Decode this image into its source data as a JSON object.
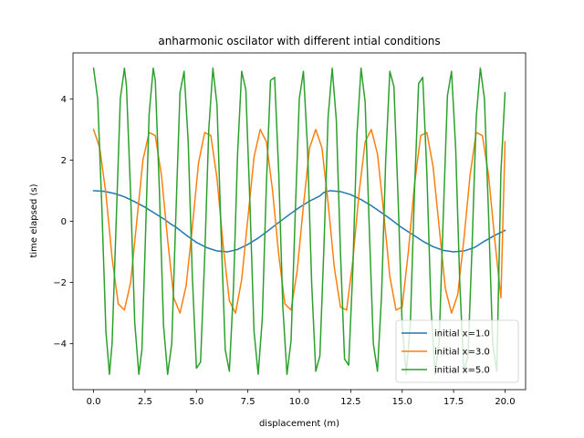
{
  "chart_data": {
    "type": "line",
    "title": "anharmonic oscilator with different intial conditions",
    "xlabel": "displacement (m)",
    "ylabel": "time elapsed (s)",
    "xlim": [
      -1.0,
      21.0
    ],
    "ylim": [
      -5.5,
      5.5
    ],
    "xticks": [
      0.0,
      2.5,
      5.0,
      7.5,
      10.0,
      12.5,
      15.0,
      17.5,
      20.0
    ],
    "xtick_labels": [
      "0.0",
      "2.5",
      "5.0",
      "7.5",
      "10.0",
      "12.5",
      "15.0",
      "17.5",
      "20.0"
    ],
    "yticks": [
      -4,
      -2,
      0,
      2,
      4
    ],
    "ytick_labels": [
      "−4",
      "−2",
      "0",
      "2",
      "4"
    ],
    "grid": false,
    "legend_position": "lower-right",
    "series": [
      {
        "name": "initial x=1.0",
        "color": "#1f77b4",
        "amplitude": 1.0,
        "x": [
          0.0,
          0.5,
          1.0,
          1.5,
          2.0,
          2.5,
          3.0,
          3.5,
          3.73,
          4.0,
          4.5,
          5.0,
          5.5,
          6.0,
          6.5,
          7.0,
          7.46,
          8.0,
          8.5,
          9.0,
          9.5,
          10.0,
          10.5,
          11.0,
          11.19,
          11.5,
          12.0,
          12.5,
          13.0,
          13.5,
          14.0,
          14.5,
          14.92,
          15.5,
          16.0,
          16.5,
          17.0,
          17.5,
          18.0,
          18.5,
          18.65,
          19.0,
          19.5,
          20.0
        ],
        "y": [
          1.0,
          0.98,
          0.91,
          0.8,
          0.64,
          0.46,
          0.25,
          0.04,
          -0.08,
          -0.19,
          -0.45,
          -0.69,
          -0.86,
          -0.97,
          -1.0,
          -0.92,
          -0.77,
          -0.55,
          -0.3,
          -0.04,
          0.21,
          0.45,
          0.66,
          0.83,
          0.94,
          1.0,
          0.97,
          0.87,
          0.71,
          0.51,
          0.28,
          0.04,
          -0.18,
          -0.43,
          -0.65,
          -0.83,
          -0.95,
          -1.0,
          -0.97,
          -0.86,
          -0.8,
          -0.65,
          -0.46,
          -0.3
        ]
      },
      {
        "name": "initial x=3.0",
        "color": "#ff7f0e",
        "amplitude": 3.0,
        "x": [
          0.0,
          0.3,
          0.6,
          0.9,
          1.2,
          1.5,
          1.8,
          2.1,
          2.4,
          2.7,
          3.0,
          3.3,
          3.6,
          3.9,
          4.2,
          4.5,
          4.8,
          5.1,
          5.4,
          5.7,
          6.0,
          6.3,
          6.6,
          6.9,
          7.2,
          7.5,
          7.8,
          8.1,
          8.4,
          8.7,
          9.0,
          9.3,
          9.6,
          9.9,
          10.2,
          10.5,
          10.8,
          11.1,
          11.4,
          11.7,
          12.0,
          12.3,
          12.6,
          12.9,
          13.2,
          13.5,
          13.8,
          14.1,
          14.4,
          14.7,
          15.0,
          15.3,
          15.6,
          15.9,
          16.2,
          16.5,
          16.8,
          17.1,
          17.4,
          17.7,
          18.0,
          18.3,
          18.6,
          18.9,
          19.2,
          19.5,
          19.8,
          20.0
        ],
        "y": [
          3.0,
          2.4,
          0.9,
          -1.2,
          -2.7,
          -2.9,
          -2.0,
          0.0,
          2.0,
          2.9,
          2.8,
          1.5,
          -0.6,
          -2.5,
          -3.0,
          -2.1,
          -0.2,
          1.9,
          2.9,
          2.8,
          1.4,
          -0.8,
          -2.6,
          -3.0,
          -1.9,
          0.1,
          2.1,
          3.0,
          2.6,
          1.0,
          -1.1,
          -2.7,
          -2.9,
          -1.6,
          0.5,
          2.4,
          3.0,
          2.4,
          0.6,
          -1.5,
          -2.8,
          -2.9,
          -1.3,
          0.9,
          2.6,
          3.0,
          2.2,
          0.3,
          -1.8,
          -2.9,
          -2.8,
          -1.0,
          1.2,
          2.8,
          2.9,
          1.8,
          -0.2,
          -2.2,
          -3.0,
          -2.4,
          -0.6,
          1.5,
          2.9,
          2.8,
          1.5,
          -0.6,
          -2.5,
          2.6
        ]
      },
      {
        "name": "initial x=5.0",
        "color": "#2ca02c",
        "amplitude": 5.0,
        "x": [
          0.0,
          0.2,
          0.4,
          0.6,
          0.77,
          0.9,
          1.1,
          1.3,
          1.5,
          1.6,
          1.8,
          2.0,
          2.2,
          2.35,
          2.5,
          2.7,
          2.9,
          3.0,
          3.2,
          3.4,
          3.6,
          3.8,
          4.0,
          4.2,
          4.4,
          4.6,
          4.8,
          5.0,
          5.2,
          5.4,
          5.6,
          5.8,
          6.0,
          6.2,
          6.4,
          6.6,
          6.8,
          7.0,
          7.2,
          7.4,
          7.6,
          7.8,
          8.0,
          8.2,
          8.4,
          8.6,
          8.8,
          9.0,
          9.2,
          9.4,
          9.6,
          9.8,
          10.0,
          10.2,
          10.4,
          10.6,
          10.8,
          11.0,
          11.2,
          11.4,
          11.6,
          11.8,
          12.0,
          12.2,
          12.4,
          12.6,
          12.8,
          13.0,
          13.2,
          13.4,
          13.6,
          13.8,
          14.0,
          14.2,
          14.4,
          14.6,
          14.8,
          15.0,
          15.2,
          15.4,
          15.6,
          15.8,
          16.0,
          16.2,
          16.4,
          16.6,
          16.8,
          17.0,
          17.2,
          17.4,
          17.6,
          17.8,
          18.0,
          18.2,
          18.4,
          18.6,
          18.8,
          19.0,
          19.2,
          19.4,
          19.6,
          19.8,
          20.0
        ],
        "y": [
          5.0,
          4.0,
          0.5,
          -3.6,
          -5.0,
          -4.0,
          0.0,
          4.0,
          5.0,
          4.4,
          0.9,
          -3.3,
          -5.0,
          -4.2,
          -1.0,
          3.5,
          5.0,
          4.6,
          1.0,
          -3.4,
          -5.0,
          -4.0,
          0.2,
          4.2,
          4.9,
          2.6,
          -1.8,
          -4.8,
          -4.6,
          -1.2,
          3.0,
          5.0,
          3.8,
          -0.4,
          -4.2,
          -4.9,
          -2.2,
          2.2,
          4.9,
          4.3,
          0.6,
          -3.6,
          -5.0,
          -3.2,
          1.2,
          4.6,
          4.7,
          1.6,
          -2.8,
          -5.0,
          -3.9,
          0.2,
          4.0,
          4.9,
          2.4,
          -2.0,
          -4.9,
          -4.4,
          -0.8,
          3.4,
          5.0,
          3.3,
          -1.0,
          -4.5,
          -4.7,
          -1.6,
          2.8,
          5.0,
          3.9,
          -0.2,
          -4.0,
          -4.9,
          -2.4,
          2.0,
          4.9,
          4.4,
          0.8,
          -3.4,
          -5.0,
          -3.3,
          1.0,
          4.5,
          4.7,
          1.6,
          -2.8,
          -5.0,
          -3.9,
          0.2,
          4.1,
          4.9,
          2.4,
          -2.0,
          -4.9,
          -4.4,
          -0.8,
          3.4,
          5.0,
          4.0,
          0.2,
          -4.0,
          -4.9,
          1.6,
          4.2
        ]
      }
    ]
  }
}
